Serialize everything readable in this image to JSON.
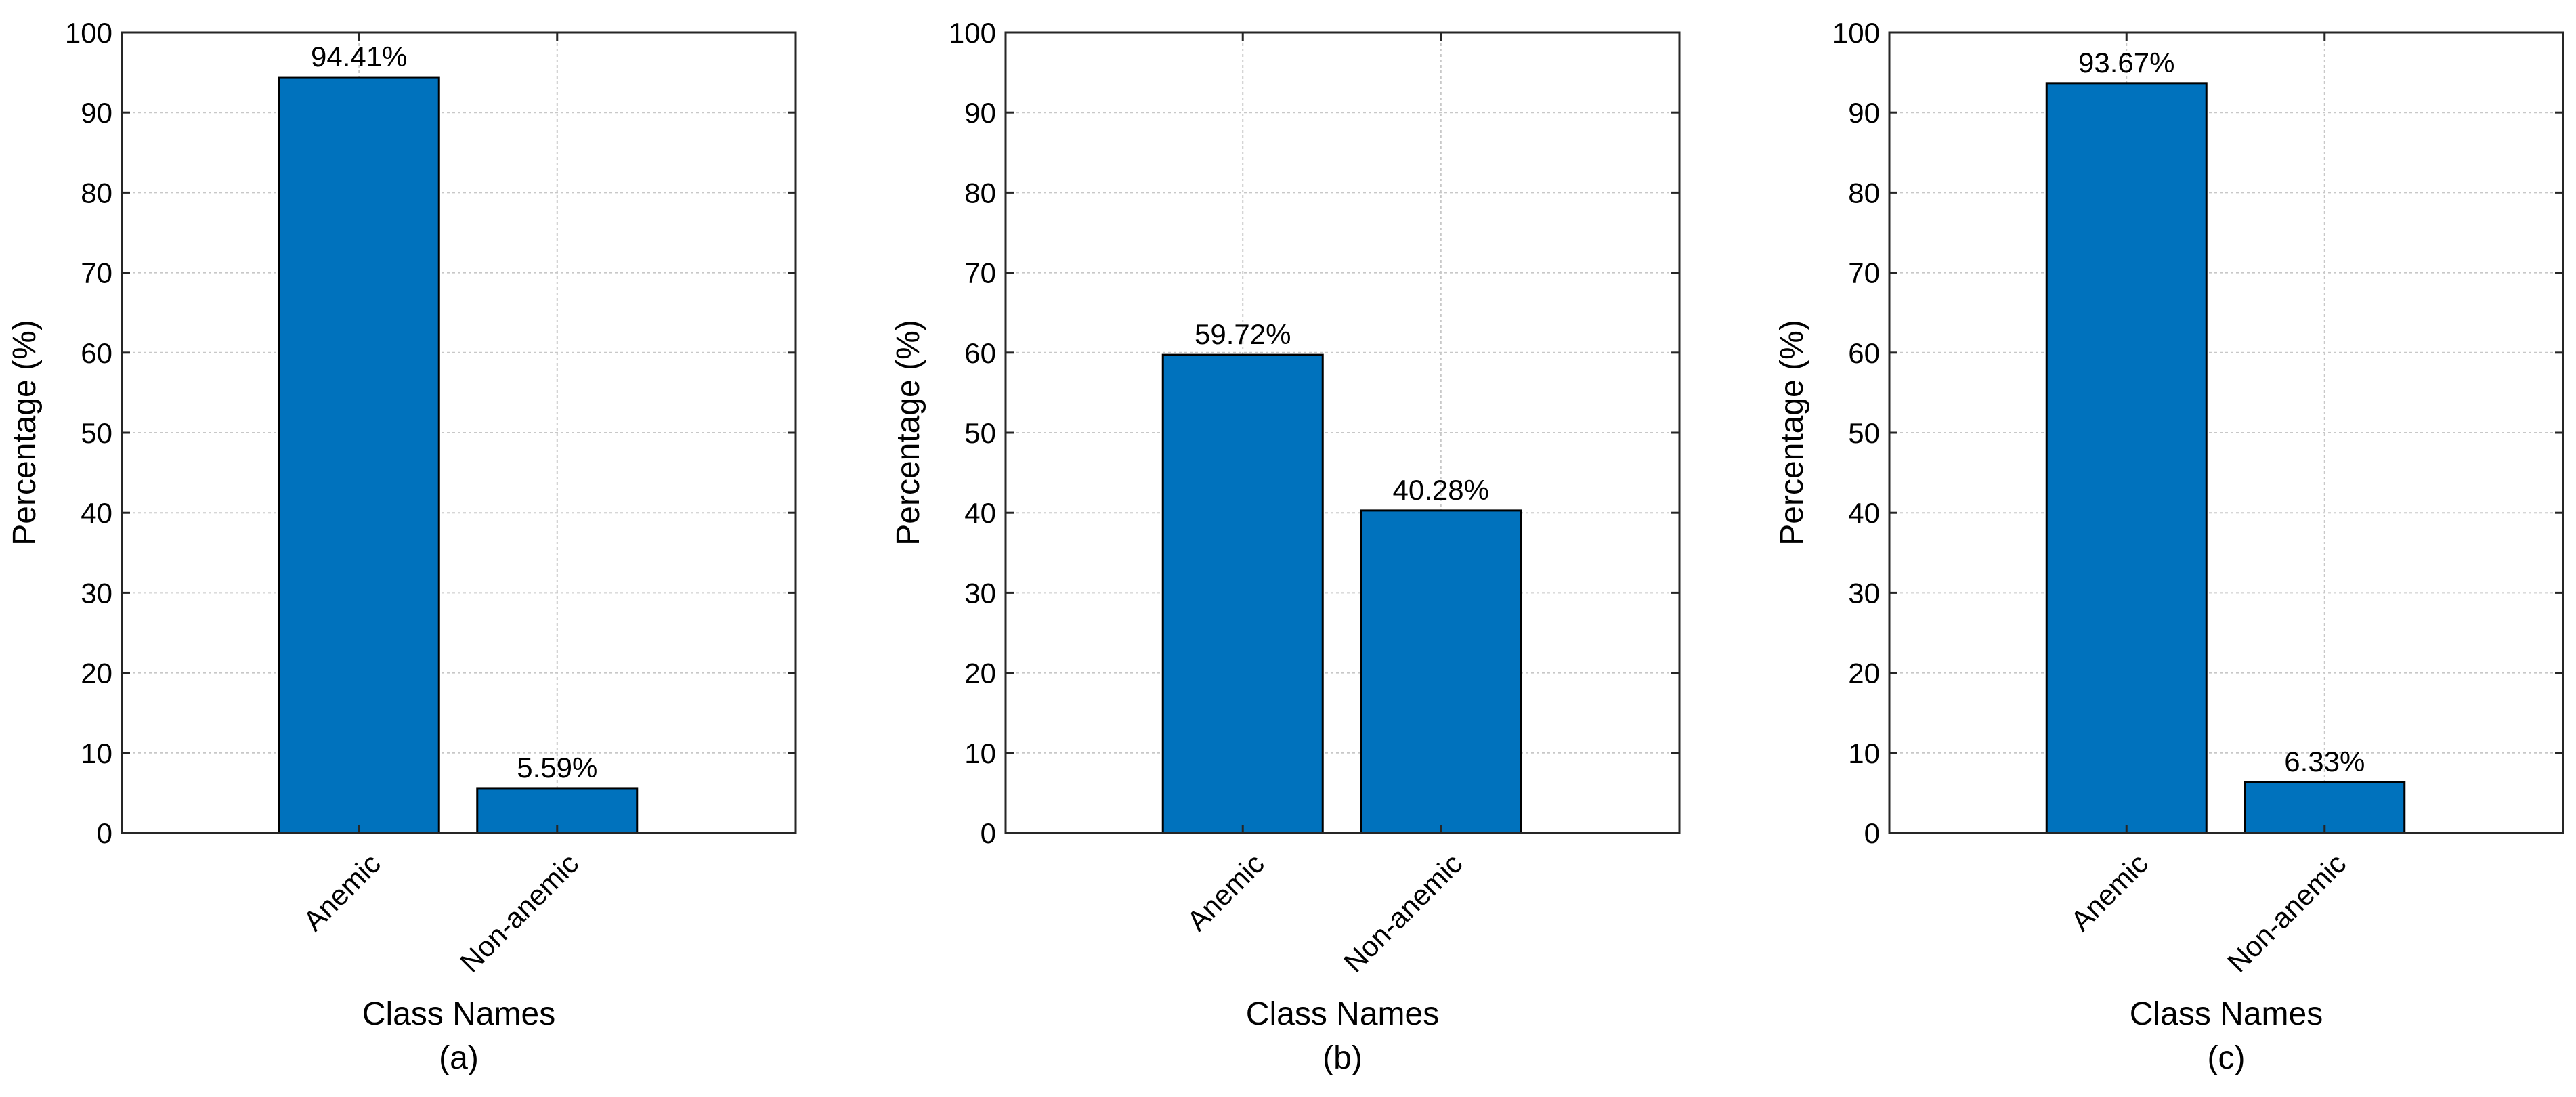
{
  "chart_data": [
    {
      "type": "bar",
      "panel_label": "(a)",
      "categories": [
        "Anemic",
        "Non-anemic"
      ],
      "values": [
        94.41,
        5.59
      ],
      "data_labels": [
        "94.41%",
        "5.59%"
      ],
      "xlabel": "Class Names",
      "ylabel": "Percentage (%)",
      "ylim": [
        0,
        100
      ],
      "yticks": [
        0,
        10,
        20,
        30,
        40,
        50,
        60,
        70,
        80,
        90,
        100
      ],
      "grid": true,
      "bar_color": "#0072BD"
    },
    {
      "type": "bar",
      "panel_label": "(b)",
      "categories": [
        "Anemic",
        "Non-anemic"
      ],
      "values": [
        59.72,
        40.28
      ],
      "data_labels": [
        "59.72%",
        "40.28%"
      ],
      "xlabel": "Class Names",
      "ylabel": "Percentage (%)",
      "ylim": [
        0,
        100
      ],
      "yticks": [
        0,
        10,
        20,
        30,
        40,
        50,
        60,
        70,
        80,
        90,
        100
      ],
      "grid": true,
      "bar_color": "#0072BD"
    },
    {
      "type": "bar",
      "panel_label": "(c)",
      "categories": [
        "Anemic",
        "Non-anemic"
      ],
      "values": [
        93.67,
        6.33
      ],
      "data_labels": [
        "93.67%",
        "6.33%"
      ],
      "xlabel": "Class Names",
      "ylabel": "Percentage (%)",
      "ylim": [
        0,
        100
      ],
      "yticks": [
        0,
        10,
        20,
        30,
        40,
        50,
        60,
        70,
        80,
        90,
        100
      ],
      "grid": true,
      "bar_color": "#0072BD"
    }
  ]
}
